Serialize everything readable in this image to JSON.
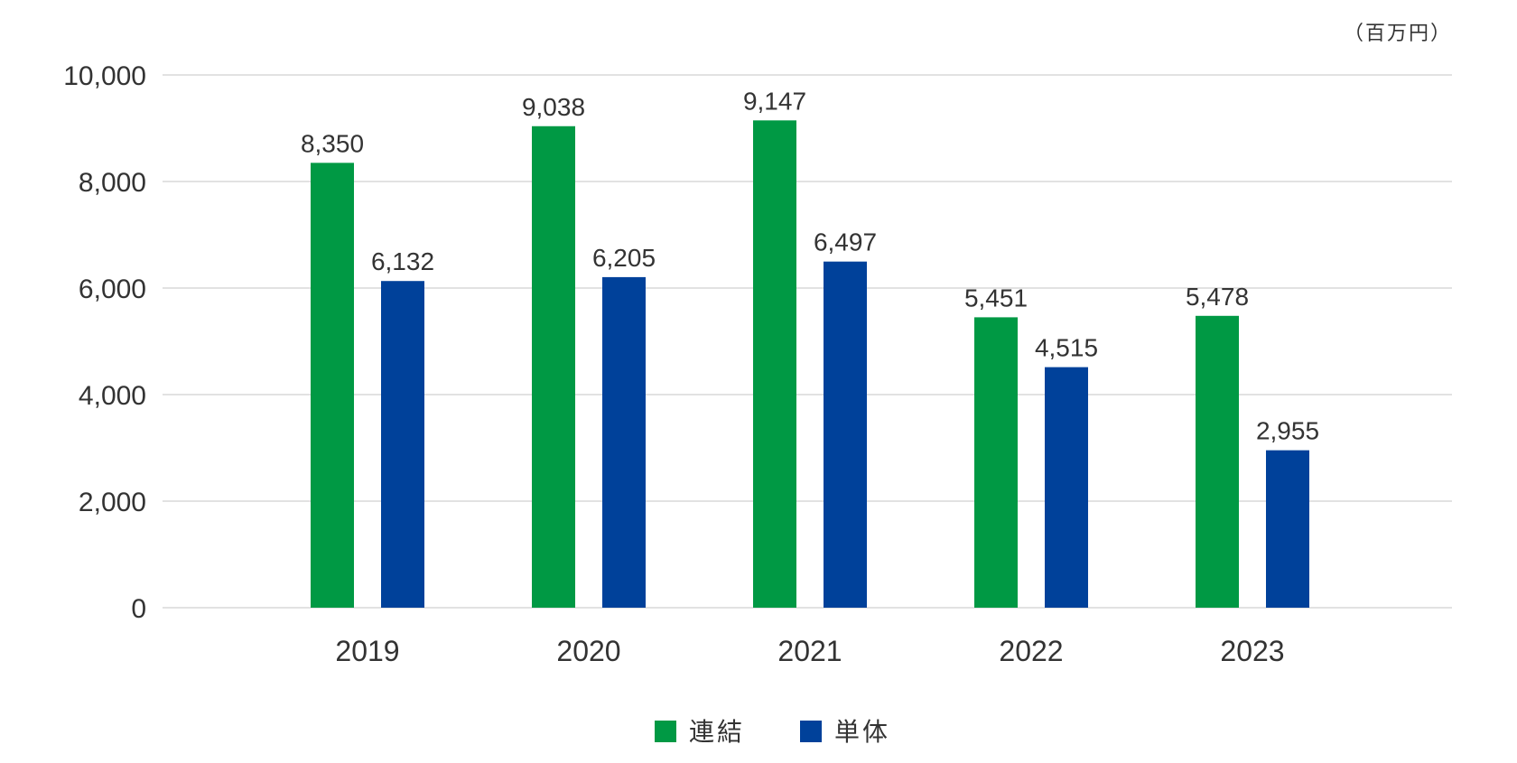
{
  "chart_data": {
    "type": "bar",
    "unit_label": "（百万円）",
    "categories": [
      "2019",
      "2020",
      "2021",
      "2022",
      "2023"
    ],
    "series": [
      {
        "name": "連結",
        "color": "#009944",
        "values": [
          8350,
          9038,
          9147,
          5451,
          5478
        ],
        "labels": [
          "8,350",
          "9,038",
          "9,147",
          "5,451",
          "5,478"
        ]
      },
      {
        "name": "単体",
        "color": "#00419A",
        "values": [
          6132,
          6205,
          6497,
          4515,
          2955
        ],
        "labels": [
          "6,132",
          "6,205",
          "6,497",
          "4,515",
          "2,955"
        ]
      }
    ],
    "ylim": [
      0,
      10000
    ],
    "yticks": [
      0,
      2000,
      4000,
      6000,
      8000,
      10000
    ],
    "ytick_labels": [
      "0",
      "2,000",
      "4,000",
      "6,000",
      "8,000",
      "10,000"
    ],
    "grid": true,
    "gridline_color": "#d9d9d9",
    "legend_position": "bottom-center"
  }
}
